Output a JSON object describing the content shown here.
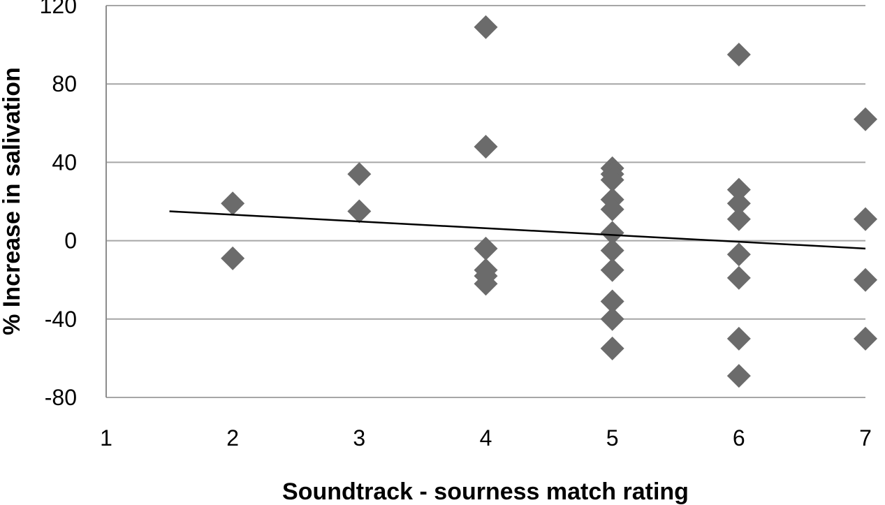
{
  "chart_data": {
    "type": "scatter",
    "title": "",
    "xlabel": "Soundtrack - sourness match rating",
    "ylabel": "% Increase in salivation",
    "xlim": [
      1,
      7
    ],
    "ylim": [
      -80,
      120
    ],
    "x_ticks": [
      1,
      2,
      3,
      4,
      5,
      6,
      7
    ],
    "y_ticks": [
      120,
      80,
      40,
      0,
      -40,
      -80
    ],
    "grid": "horizontal",
    "marker": "diamond",
    "colors": {
      "marker": "#6b6b6b",
      "grid": "#a6a6a6",
      "trendline": "#000000",
      "axis": "#8c8c8c"
    },
    "series": [
      {
        "points": [
          [
            2,
            19
          ],
          [
            2,
            -9
          ],
          [
            3,
            34
          ],
          [
            3,
            15
          ],
          [
            4,
            109
          ],
          [
            4,
            48
          ],
          [
            4,
            -4
          ],
          [
            4,
            -15
          ],
          [
            4,
            -18
          ],
          [
            4,
            -22
          ],
          [
            5,
            37
          ],
          [
            5,
            34
          ],
          [
            5,
            31
          ],
          [
            5,
            21
          ],
          [
            5,
            16
          ],
          [
            5,
            4
          ],
          [
            5,
            -5
          ],
          [
            5,
            -15
          ],
          [
            5,
            -31
          ],
          [
            5,
            -40
          ],
          [
            5,
            -55
          ],
          [
            6,
            95
          ],
          [
            6,
            26
          ],
          [
            6,
            19
          ],
          [
            6,
            11
          ],
          [
            6,
            -7
          ],
          [
            6,
            -19
          ],
          [
            6,
            -50
          ],
          [
            6,
            -69
          ],
          [
            7,
            62
          ],
          [
            7,
            11
          ],
          [
            7,
            -20
          ],
          [
            7,
            -50
          ]
        ]
      }
    ],
    "trendline": {
      "x": [
        1.5,
        7
      ],
      "y": [
        15,
        -4
      ]
    }
  }
}
